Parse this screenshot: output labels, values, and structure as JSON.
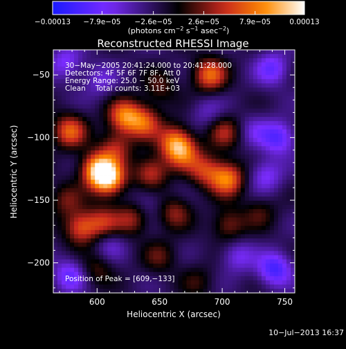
{
  "chart_data": {
    "type": "heatmap",
    "title": "Reconstructed RHESSI Image",
    "xlabel": "Heliocentric X (arcsec)",
    "ylabel": "Heliocentric Y (arcsec)",
    "xlim": [
      565,
      758
    ],
    "ylim": [
      -224,
      -30
    ],
    "x_ticks": [
      600,
      650,
      700,
      750
    ],
    "y_ticks": [
      -50,
      -100,
      -150,
      -200
    ],
    "x_tick_labels": [
      "600",
      "650",
      "700",
      "750"
    ],
    "y_tick_labels": [
      "−50",
      "−100",
      "−150",
      "−200"
    ],
    "colorbar": {
      "range": [
        -0.00013,
        0.00013
      ],
      "ticks": [
        -0.00013,
        -7.9e-05,
        -2.6e-05,
        2.6e-05,
        7.9e-05,
        0.00013
      ],
      "tick_labels": [
        "−0.00013",
        "−7.9e−05",
        "−2.6e−05",
        "2.6e−05",
        "7.9e−05",
        "0.00013"
      ],
      "unit_main": "(photons cm",
      "unit_sup1": "−2",
      "unit_mid": " s",
      "unit_sup2": "−1",
      "unit_end": " asec",
      "unit_sup3": "−2",
      "unit_close": ")",
      "colors": [
        "#1a1aff",
        "#7a2cff",
        "#000000",
        "#c8281e",
        "#ff8a00",
        "#ffffff"
      ]
    },
    "annotations": [
      "30−May−2005 20:41:24.000 to 20:41:28.000",
      "Detectors: 4F 5F 6F 7F 8F, Att 0",
      "Energy Range: 25.0 − 50.0 keV",
      "Clean",
      "Total counts: 3.11E+03",
      "Position of Peak = [609,−133]"
    ],
    "peak": {
      "x": 609,
      "y": -133
    },
    "sources": [
      {
        "x": 609,
        "y": -133,
        "v": 0.00013
      },
      {
        "x": 600,
        "y": -125,
        "v": 0.00011
      },
      {
        "x": 578,
        "y": -95,
        "v": 9e-05
      },
      {
        "x": 622,
        "y": -83,
        "v": 0.0001
      },
      {
        "x": 638,
        "y": -88,
        "v": 8e-05
      },
      {
        "x": 643,
        "y": -128,
        "v": 7.5e-05
      },
      {
        "x": 662,
        "y": -103,
        "v": 8.5e-05
      },
      {
        "x": 668,
        "y": -112,
        "v": 8e-05
      },
      {
        "x": 686,
        "y": -126,
        "v": 7e-05
      },
      {
        "x": 704,
        "y": -133,
        "v": 0.000105
      },
      {
        "x": 690,
        "y": -50,
        "v": 9.5e-05
      },
      {
        "x": 702,
        "y": -96,
        "v": 6e-05
      },
      {
        "x": 587,
        "y": -172,
        "v": 8.5e-05
      },
      {
        "x": 605,
        "y": -168,
        "v": 6.5e-05
      },
      {
        "x": 628,
        "y": -165,
        "v": 6e-05
      },
      {
        "x": 662,
        "y": -160,
        "v": 5.5e-05
      },
      {
        "x": 705,
        "y": -170,
        "v": 5.5e-05
      },
      {
        "x": 600,
        "y": -205,
        "v": 4e-05
      },
      {
        "x": 650,
        "y": -195,
        "v": 4e-05
      },
      {
        "x": 730,
        "y": -160,
        "v": 3.5e-05
      },
      {
        "x": 680,
        "y": -215,
        "v": 3e-05
      },
      {
        "x": 575,
        "y": -150,
        "v": 4.5e-05
      },
      {
        "x": 615,
        "y": -108,
        "v": 6e-05
      },
      {
        "x": 650,
        "y": -60,
        "v": 4e-05
      },
      {
        "x": 725,
        "y": -95,
        "v": -3e-05
      },
      {
        "x": 740,
        "y": -45,
        "v": -6e-05
      },
      {
        "x": 745,
        "y": -100,
        "v": -7e-05
      },
      {
        "x": 735,
        "y": -130,
        "v": -5e-05
      },
      {
        "x": 742,
        "y": -205,
        "v": -8e-05
      },
      {
        "x": 578,
        "y": -210,
        "v": -6e-05
      },
      {
        "x": 575,
        "y": -40,
        "v": -5e-05
      },
      {
        "x": 712,
        "y": -195,
        "v": -4.5e-05
      },
      {
        "x": 610,
        "y": -185,
        "v": -3.5e-05
      },
      {
        "x": 688,
        "y": -80,
        "v": -3e-05
      },
      {
        "x": 640,
        "y": -150,
        "v": -3e-05
      },
      {
        "x": 602,
        "y": -55,
        "v": -3.5e-05
      }
    ]
  },
  "footer": {
    "timestamp": "10−Jul−2013 16:37"
  }
}
